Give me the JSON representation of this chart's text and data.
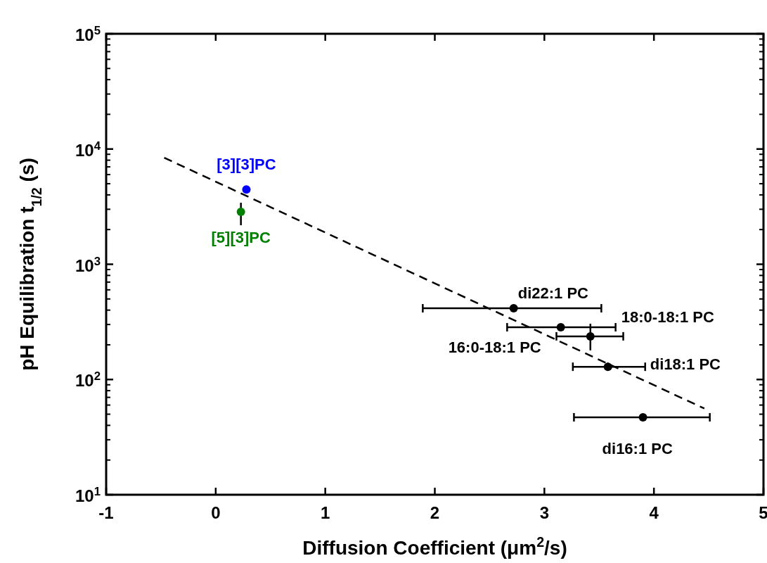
{
  "chart_data": {
    "type": "scatter",
    "xlabel": "Diffusion Coefficient (μm$^{2}$/s)",
    "ylabel": "pH Equilibration t$_{1/2}$ (s)",
    "log": "y",
    "xlim": [
      -1,
      5
    ],
    "xticks": [
      -1,
      0,
      1,
      2,
      3,
      4,
      5
    ],
    "ylim": [
      10,
      100000
    ],
    "yticks": [
      {
        "value": 10,
        "label": "10$^{1}$"
      },
      {
        "value": 100,
        "label": "10$^{2}$"
      },
      {
        "value": 1000,
        "label": "10$^{3}$"
      },
      {
        "value": 10000,
        "label": "10$^{4}$"
      },
      {
        "value": 100000,
        "label": "10$^{5}$"
      }
    ],
    "marker": "circle",
    "grid": false,
    "series": [
      {
        "type": "line",
        "line_style": "dashed",
        "marker": "none",
        "color": "#000000",
        "x": [
          -0.47,
          4.46
        ],
        "values": [
          8400,
          56
        ]
      },
      {
        "name": "[3][3]PC",
        "color": "#0000ff",
        "x": [
          0.28
        ],
        "values": [
          4450
        ]
      },
      {
        "name": "[5][3]PC",
        "color": "#008000",
        "x": [
          0.23
        ],
        "values": [
          2850
        ],
        "errors": [
          [
            2180,
            3420
          ]
        ]
      },
      {
        "name": "di22:1 PC",
        "color": "#000000",
        "x": [
          2.72
        ],
        "values": [
          415
        ],
        "xerrors": [
          [
            1.89,
            3.52
          ]
        ]
      },
      {
        "name": "16:0-18:1 PC",
        "color": "#000000",
        "x": [
          3.15
        ],
        "values": [
          284
        ],
        "xerrors": [
          [
            2.66,
            3.65
          ]
        ]
      },
      {
        "name": "18:0-18:1 PC",
        "color": "#000000",
        "x": [
          3.42
        ],
        "values": [
          237
        ],
        "xerrors": [
          [
            3.11,
            3.72
          ]
        ],
        "errors": [
          [
            179,
            305
          ]
        ]
      },
      {
        "name": "di18:1 PC",
        "color": "#000000",
        "x": [
          3.58
        ],
        "values": [
          129
        ],
        "xerrors": [
          [
            3.26,
            3.92
          ]
        ],
        "errors": [
          [
            119,
            140
          ]
        ]
      },
      {
        "name": "di16:1 PC",
        "color": "#000000",
        "x": [
          3.9
        ],
        "values": [
          47
        ],
        "xerrors": [
          [
            3.27,
            4.51
          ]
        ]
      }
    ]
  }
}
